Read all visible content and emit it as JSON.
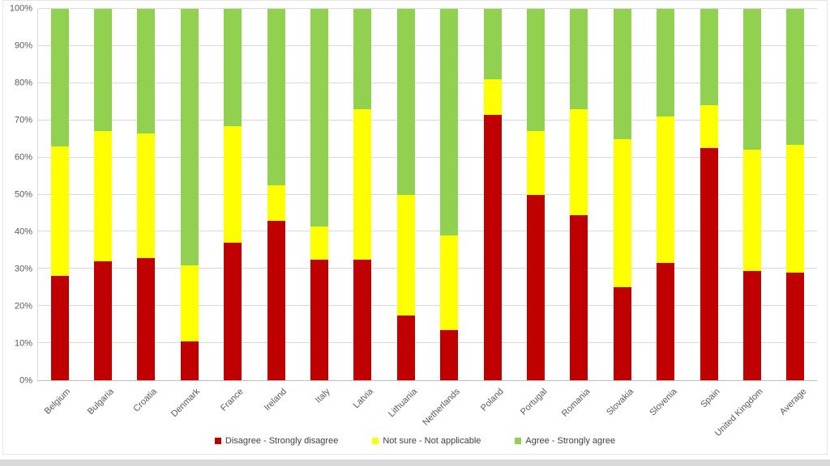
{
  "chart_data": {
    "type": "bar",
    "stacked": true,
    "percent": true,
    "title": "",
    "xlabel": "",
    "ylabel": "",
    "ylim": [
      0,
      100
    ],
    "ytick_step": 10,
    "ytick_labels": [
      "0%",
      "10%",
      "20%",
      "30%",
      "40%",
      "50%",
      "60%",
      "70%",
      "80%",
      "90%",
      "100%"
    ],
    "grid": true,
    "legend_position": "bottom",
    "categories": [
      "Belgium",
      "Bulgaria",
      "Croatia",
      "Denmark",
      "France",
      "Ireland",
      "Italy",
      "Latvia",
      "Lithuania",
      "Netherlands",
      "Poland",
      "Portugal",
      "Romania",
      "Slovakia",
      "Slovenia",
      "Spain",
      "United Kingdom",
      "Average"
    ],
    "series": [
      {
        "name": "Disagree - Strongly disagree",
        "color": "#c00000",
        "values": [
          28,
          32,
          33,
          10.5,
          37,
          43,
          32.5,
          32.5,
          17.5,
          13.5,
          71.5,
          50,
          44.5,
          25,
          31.5,
          62.5,
          29.5,
          29
        ]
      },
      {
        "name": "Not sure - Not applicable",
        "color": "#ffff00",
        "values": [
          35,
          35,
          33.5,
          20.5,
          31.5,
          9.5,
          9,
          40.5,
          32.5,
          25.5,
          9.5,
          17,
          28.5,
          40,
          39.5,
          11.5,
          32.5,
          34.5
        ]
      },
      {
        "name": "Agree - Strongly agree",
        "color": "#92d050",
        "values": [
          37,
          33,
          33.5,
          69,
          31.5,
          47.5,
          58.5,
          27,
          50,
          61,
          19,
          33,
          27,
          35,
          29,
          26,
          38,
          36.5
        ]
      }
    ]
  }
}
